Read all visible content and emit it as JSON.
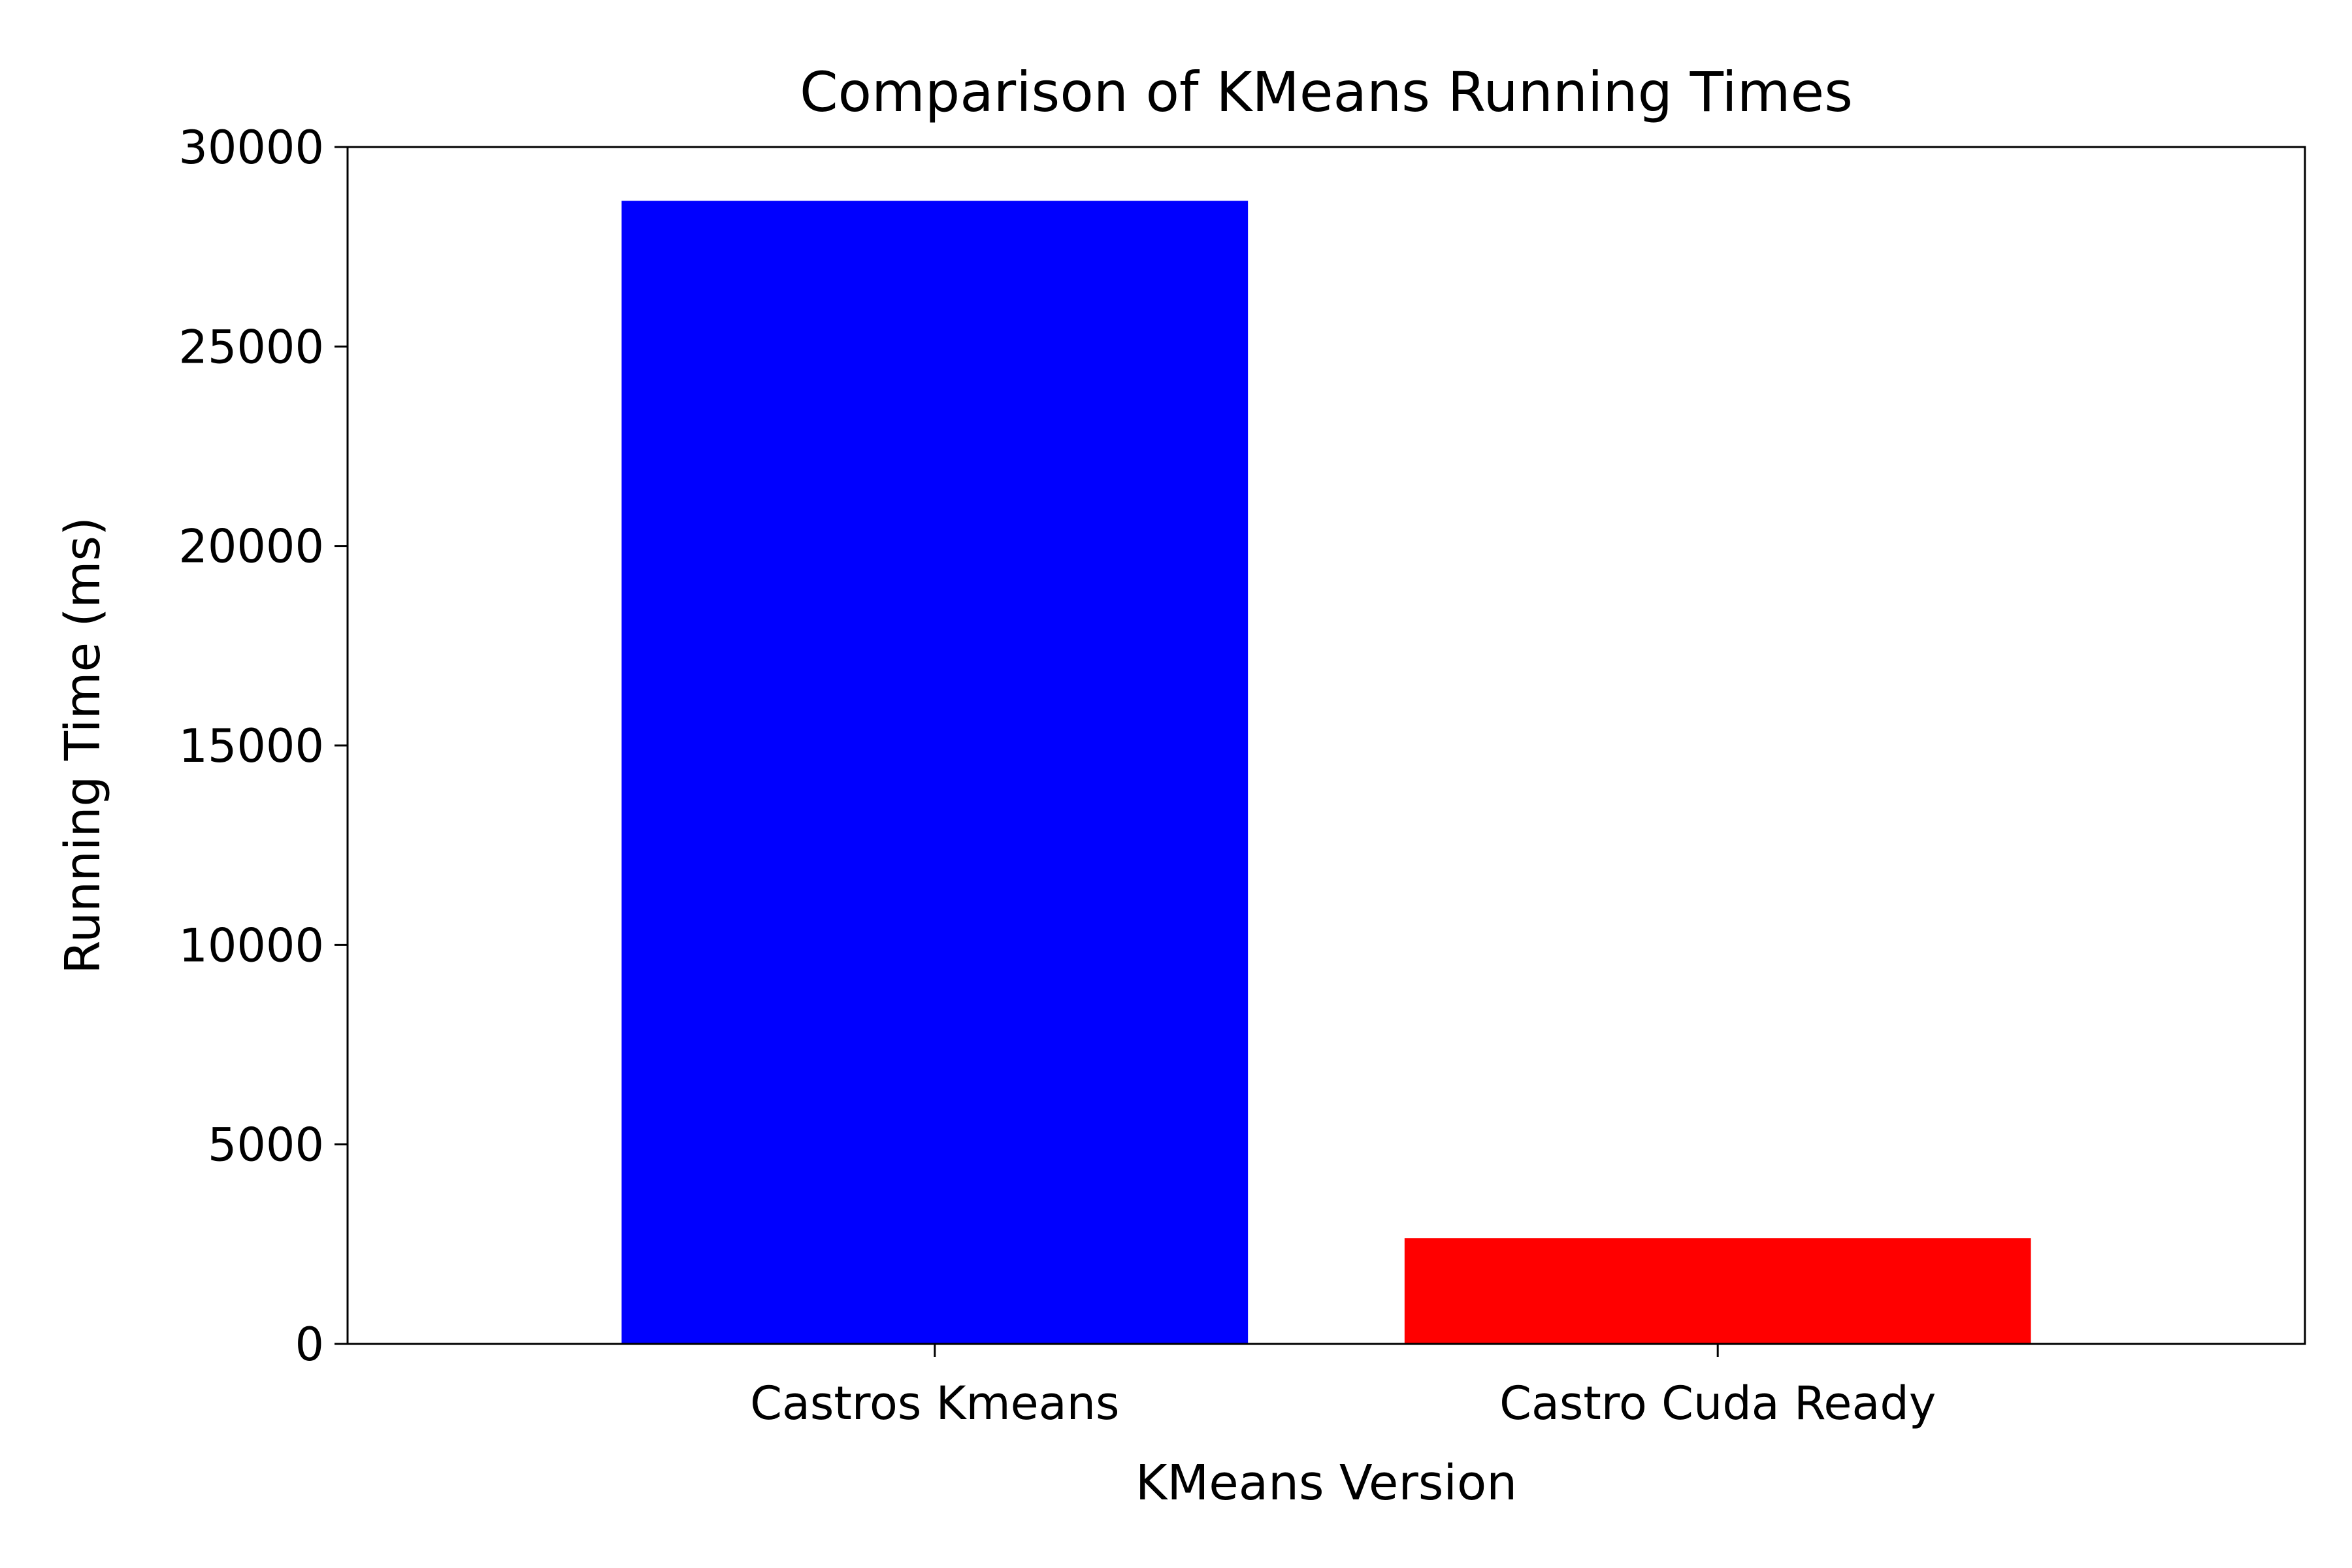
{
  "chart_data": {
    "type": "bar",
    "title": "Comparison of KMeans Running Times",
    "xlabel": "KMeans Version",
    "ylabel": "Running Time (ms)",
    "categories": [
      "Castros Kmeans",
      "Castro Cuda Ready"
    ],
    "values": [
      28650,
      2650
    ],
    "colors": [
      "#0000ff",
      "#ff0000"
    ],
    "ylim": [
      0,
      30000
    ],
    "yticks": [
      0,
      5000,
      10000,
      15000,
      20000,
      25000,
      30000
    ],
    "grid": false,
    "legend": "none"
  }
}
